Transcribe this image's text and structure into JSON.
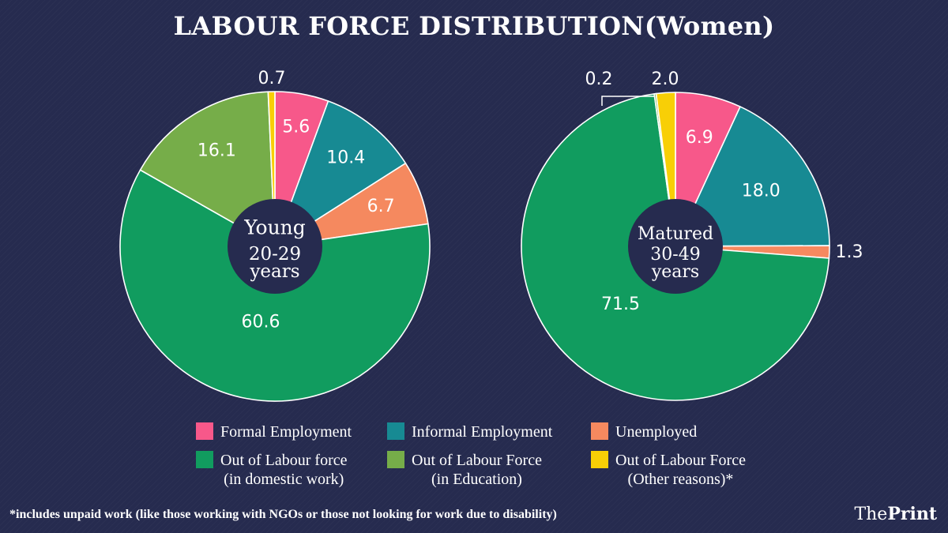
{
  "title": "LABOUR FORCE DISTRIBUTION(Women)",
  "colors": {
    "formal": "#f7588a",
    "informal": "#178a93",
    "unemployed": "#f5895f",
    "domestic": "#119c5f",
    "education": "#76ad49",
    "other": "#f8cf06",
    "hole": "#262b4f"
  },
  "chart_data": [
    {
      "type": "pie",
      "center_label": [
        "Young",
        "20-29",
        "years"
      ],
      "slices": [
        {
          "key": "formal",
          "label": "Formal Employment",
          "value": 5.6
        },
        {
          "key": "informal",
          "label": "Informal Employment",
          "value": 10.4
        },
        {
          "key": "unemployed",
          "label": "Unemployed",
          "value": 6.7
        },
        {
          "key": "domestic",
          "label": "Out of Labour force (in domestic work)",
          "value": 60.6
        },
        {
          "key": "education",
          "label": "Out of Labour Force (in Education)",
          "value": 16.1
        },
        {
          "key": "other",
          "label": "Out of Labour Force (Other reasons)*",
          "value": 0.7
        }
      ]
    },
    {
      "type": "pie",
      "center_label": [
        "Matured",
        "30-49",
        "years"
      ],
      "slices": [
        {
          "key": "formal",
          "label": "Formal Employment",
          "value": 6.9
        },
        {
          "key": "informal",
          "label": "Informal Employment",
          "value": 18.0
        },
        {
          "key": "unemployed",
          "label": "Unemployed",
          "value": 1.3
        },
        {
          "key": "domestic",
          "label": "Out of Labour force (in domestic work)",
          "value": 71.5
        },
        {
          "key": "education",
          "label": "Out of Labour Force (in Education)",
          "value": 0.2
        },
        {
          "key": "other",
          "label": "Out of Labour Force (Other reasons)*",
          "value": 2.0
        }
      ]
    }
  ],
  "legend": [
    {
      "key": "formal",
      "lines": [
        "Formal Employment"
      ]
    },
    {
      "key": "informal",
      "lines": [
        "Informal Employment"
      ]
    },
    {
      "key": "unemployed",
      "lines": [
        "Unemployed"
      ]
    },
    {
      "key": "domestic",
      "lines": [
        "Out of Labour force",
        "(in domestic work)"
      ]
    },
    {
      "key": "education",
      "lines": [
        "Out of Labour Force",
        "(in Education)"
      ]
    },
    {
      "key": "other",
      "lines": [
        "Out of Labour Force",
        "(Other reasons)*"
      ]
    }
  ],
  "footnote": "*includes unpaid work (like those working with NGOs or those not looking for work due to disability)",
  "brand": {
    "the": "The",
    "print": "Print"
  }
}
